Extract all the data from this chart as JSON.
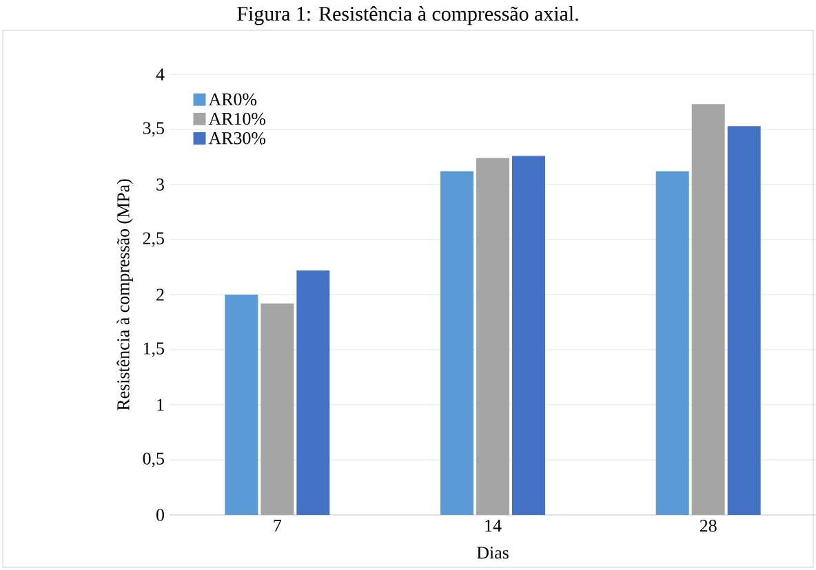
{
  "chart_data": {
    "type": "bar",
    "title": "Figura 1: Resistência à compressão axial.",
    "xlabel": "Dias",
    "ylabel": "Resistência à compressão (MPa)",
    "categories": [
      "7",
      "14",
      "28"
    ],
    "series": [
      {
        "name": "AR0%",
        "color": "#5b9bd5",
        "values": [
          2.0,
          3.12,
          3.12
        ]
      },
      {
        "name": "AR10%",
        "color": "#a5a5a5",
        "values": [
          1.92,
          3.24,
          3.73
        ]
      },
      {
        "name": "AR30%",
        "color": "#4472c4",
        "values": [
          2.22,
          3.26,
          3.53
        ]
      }
    ],
    "ylim": [
      0,
      4
    ],
    "yticks": [
      0,
      {
        "value": 0.5,
        "label": "0,5"
      },
      1,
      {
        "value": 1.5,
        "label": "1,5"
      },
      2,
      {
        "value": 2.5,
        "label": "2,5"
      },
      3,
      {
        "value": 3.5,
        "label": "3,5"
      },
      4
    ],
    "grid": "y",
    "legend": "top left"
  }
}
